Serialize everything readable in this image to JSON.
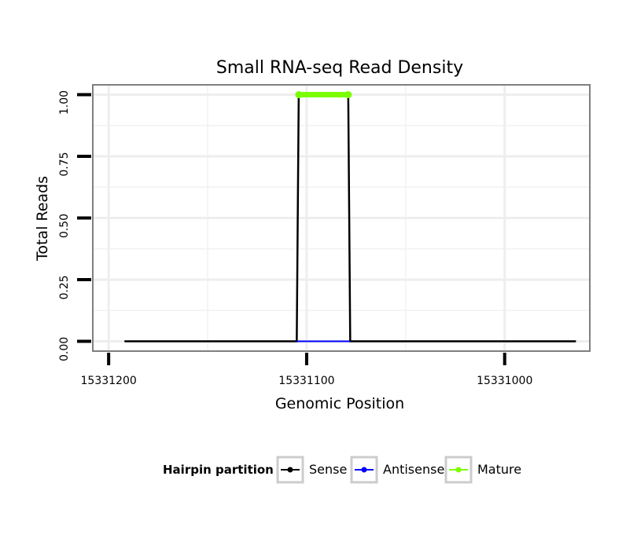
{
  "chart_data": {
    "type": "line",
    "title": "Small RNA-seq Read Density",
    "xlabel": "Genomic Position",
    "ylabel": "Total Reads",
    "xlim": [
      15331208,
      15330957
    ],
    "ylim": [
      -0.04,
      1.04
    ],
    "x_ticks": [
      {
        "value": 15331200,
        "label": "15331200"
      },
      {
        "value": 15331100,
        "label": "15331100"
      },
      {
        "value": 15331000,
        "label": "15331000"
      }
    ],
    "y_ticks": [
      {
        "value": 0.0,
        "label": "0.00"
      },
      {
        "value": 0.25,
        "label": "0.25"
      },
      {
        "value": 0.5,
        "label": "0.50"
      },
      {
        "value": 0.75,
        "label": "0.75"
      },
      {
        "value": 1.0,
        "label": "1.00"
      }
    ],
    "grid": true,
    "series": [
      {
        "name": "Sense",
        "color": "#000000",
        "points": [
          [
            15331192,
            0
          ],
          [
            15331105,
            0
          ],
          [
            15331104,
            1
          ],
          [
            15331079,
            1
          ],
          [
            15331078,
            0
          ],
          [
            15330964,
            0
          ]
        ]
      },
      {
        "name": "Antisense",
        "color": "#0000ff",
        "points": [
          [
            15331105,
            0
          ],
          [
            15331078,
            0
          ]
        ]
      },
      {
        "name": "Mature",
        "color": "#7cfc00",
        "points": [
          [
            15331104,
            1
          ],
          [
            15331079,
            1
          ]
        ]
      }
    ],
    "legend": {
      "title": "Hairpin partition",
      "position": "bottom",
      "entries": [
        {
          "label": "Sense",
          "color": "#000000"
        },
        {
          "label": "Antisense",
          "color": "#0000ff"
        },
        {
          "label": "Mature",
          "color": "#7cfc00"
        }
      ]
    }
  }
}
